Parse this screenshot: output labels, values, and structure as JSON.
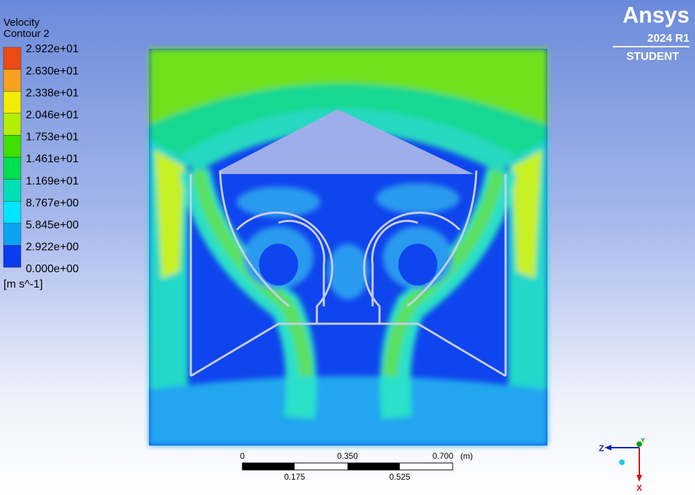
{
  "legend": {
    "title": "Velocity",
    "subtitle": "Contour 2",
    "labels": [
      "2.922e+01",
      "2.630e+01",
      "2.338e+01",
      "2.046e+01",
      "1.753e+01",
      "1.461e+01",
      "1.169e+01",
      "8.767e+00",
      "5.845e+00",
      "2.922e+00",
      "0.000e+00"
    ],
    "unit": "[m s^-1]"
  },
  "logo": {
    "brand": "Ansys",
    "version": "2024 R1",
    "edition": "STUDENT"
  },
  "scale_bar": {
    "top_labels": [
      "0",
      "0.350",
      "0.700"
    ],
    "unit": "(m)",
    "bottom_labels": [
      "0.175",
      "0.525"
    ]
  },
  "axes": {
    "z": "Z",
    "y": "Y",
    "x": "X"
  }
}
